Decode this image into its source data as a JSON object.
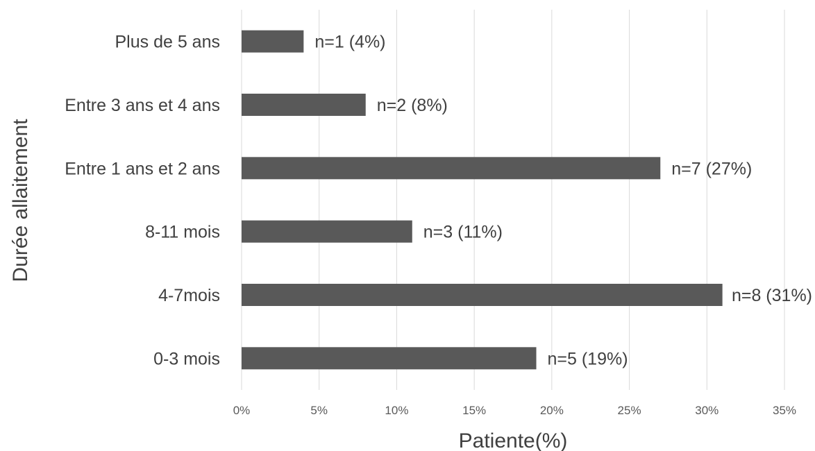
{
  "chart_data": {
    "type": "bar",
    "orientation": "horizontal",
    "categories": [
      "0-3 mois",
      "4-7mois",
      "8-11 mois",
      "Entre 1 ans et 2 ans",
      "Entre 3 ans et 4 ans",
      "Plus de 5 ans"
    ],
    "values": [
      19,
      31,
      11,
      27,
      8,
      4
    ],
    "bar_labels": [
      "n=5 (19%)",
      "n=8 (31%)",
      "n=3 (11%)",
      "n=7 (27%)",
      "n=2 (8%)",
      "n=1 (4%)"
    ],
    "xlabel": "Patiente(%)",
    "ylabel": "Durée allaitement",
    "xlim": [
      0,
      35
    ],
    "xticks": [
      0,
      5,
      10,
      15,
      20,
      25,
      30,
      35
    ],
    "xtick_labels": [
      "0%",
      "5%",
      "10%",
      "15%",
      "20%",
      "25%",
      "30%",
      "35%"
    ],
    "grid": "vertical",
    "bar_color": "#595959",
    "gridline_color": "#d9d9d9"
  }
}
